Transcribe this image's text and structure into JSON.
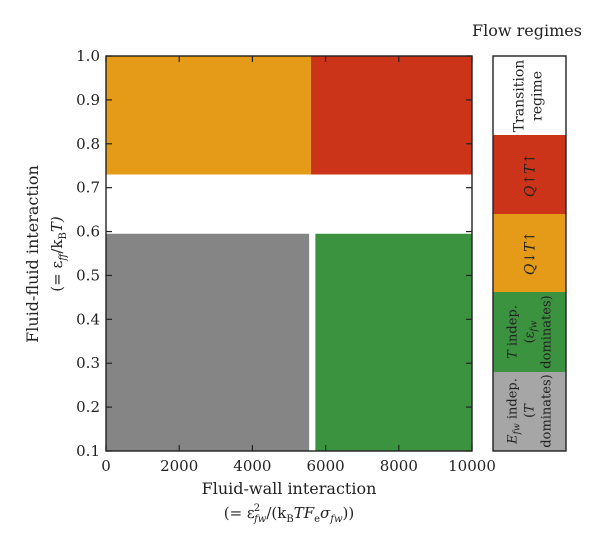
{
  "chart_data": {
    "type": "heatmap",
    "title": "",
    "xlabel": {
      "line1": "Fluid-wall interaction",
      "line2_prefix": "(= ε",
      "line2_sup": "2",
      "line2_sub": "fw",
      "line2_mid": "/(k",
      "line2_sub2": "B",
      "line2_mid2": "TF",
      "line2_sub3": "e",
      "line2_mid3": "σ",
      "line2_sub4": "fw",
      "line2_end": "))"
    },
    "ylabel": {
      "line1": "Fluid-fluid interaction",
      "line2_prefix": "(= ε",
      "line2_sub": "ff",
      "line2_mid": "/k",
      "line2_sub2": "B",
      "line2_end": "T)"
    },
    "xlim": [
      0,
      10000
    ],
    "ylim": [
      0.1,
      1.0
    ],
    "xticks": [
      "0",
      "2000",
      "4000",
      "6000",
      "8000",
      "10000"
    ],
    "xtick_values": [
      0,
      2000,
      4000,
      6000,
      8000,
      10000
    ],
    "yticks": [
      "0.1",
      "0.2",
      "0.3",
      "0.4",
      "0.5",
      "0.6",
      "0.7",
      "0.8",
      "0.9",
      "1.0"
    ],
    "ytick_values": [
      0.1,
      0.2,
      0.3,
      0.4,
      0.5,
      0.6,
      0.7,
      0.8,
      0.9,
      1.0
    ],
    "regions": [
      {
        "name": "Q↓T↑",
        "x": [
          0,
          5600
        ],
        "y": [
          0.73,
          1.0
        ],
        "color": "#e59b18"
      },
      {
        "name": "Q↑T↑",
        "x": [
          5600,
          10000
        ],
        "y": [
          0.73,
          1.0
        ],
        "color": "#cc3419"
      },
      {
        "name": "Transition regime",
        "x": [
          0,
          10000
        ],
        "y": [
          0.595,
          0.73
        ],
        "color": "#ffffff"
      },
      {
        "name": "E_fw indep.",
        "x": [
          0,
          5550
        ],
        "y": [
          0.1,
          0.595
        ],
        "color": "#858585"
      },
      {
        "name": "T indep.",
        "x": [
          5720,
          10000
        ],
        "y": [
          0.1,
          0.595
        ],
        "color": "#3c933f"
      }
    ],
    "legend": {
      "title": "Flow regimes",
      "placement": "right",
      "entries": [
        {
          "key": "transition",
          "color": "#ffffff",
          "lines": [
            "Transition",
            "regime"
          ]
        },
        {
          "key": "qup",
          "color": "#cc3419",
          "lines": [
            "Q↑T↑"
          ]
        },
        {
          "key": "qdown",
          "color": "#e59b18",
          "lines": [
            "Q↓T↑"
          ]
        },
        {
          "key": "tindep",
          "color": "#3c933f",
          "lines": [
            "T indep.",
            "(ε",
            "dominates)"
          ],
          "sub": "fw"
        },
        {
          "key": "efwindep",
          "color": "#a6a6a6",
          "lines": [
            "E",
            "indep.",
            "(T",
            "dominates)"
          ],
          "sub": "fw"
        }
      ]
    }
  }
}
